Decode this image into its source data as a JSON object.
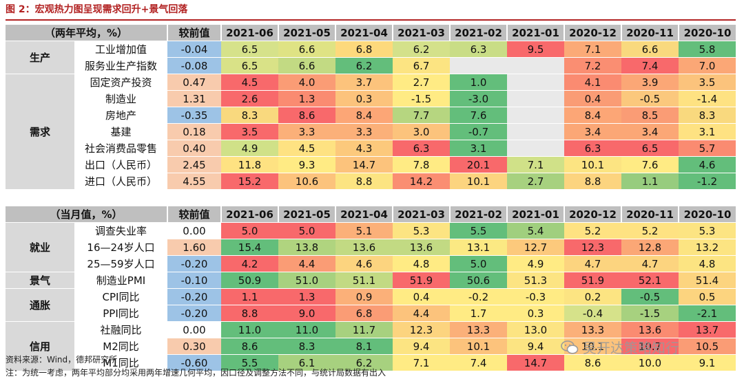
{
  "title": "图 2：宏观热力图呈现需求回升+景气回落",
  "section1": {
    "header_label": "（两年平均，%）",
    "change_label": "较前值",
    "months": [
      "2021-06",
      "2021-05",
      "2021-04",
      "2021-03",
      "2021-02",
      "2021-01",
      "2020-12",
      "2020-11",
      "2020-10"
    ],
    "groups": [
      {
        "name": "生产",
        "rows": [
          {
            "label": "工业增加值",
            "change": "-0.04",
            "values": [
              "6.5",
              "6.6",
              "6.8",
              "6.2",
              "6.3",
              "9.5",
              "7.1",
              "6.6",
              "5.8"
            ]
          },
          {
            "label": "服务业生产指数",
            "change": "-0.08",
            "values": [
              "6.5",
              "6.6",
              "6.2",
              "6.7",
              "",
              "",
              "7.2",
              "7.4",
              "7.0"
            ]
          }
        ]
      },
      {
        "name": "需求",
        "rows": [
          {
            "label": "固定资产投资",
            "change": "0.47",
            "values": [
              "4.5",
              "4.0",
              "3.7",
              "2.7",
              "1.0",
              "",
              "4.1",
              "3.9",
              "3.5"
            ]
          },
          {
            "label": "制造业",
            "change": "1.31",
            "values": [
              "2.6",
              "1.3",
              "0.3",
              "-1.5",
              "-3.0",
              "",
              "0.4",
              "-0.5",
              "-1.4"
            ]
          },
          {
            "label": "房地产",
            "change": "-0.35",
            "values": [
              "8.3",
              "8.6",
              "8.4",
              "7.7",
              "7.6",
              "",
              "8.4",
              "8.5",
              "8.3"
            ]
          },
          {
            "label": "基建",
            "change": "0.18",
            "values": [
              "3.5",
              "3.3",
              "3.3",
              "3.0",
              "-0.7",
              "",
              "3.4",
              "3.4",
              "3.1"
            ]
          },
          {
            "label": "社会消费品零售",
            "change": "0.40",
            "values": [
              "4.9",
              "4.5",
              "4.3",
              "6.3",
              "3.1",
              "",
              "6.3",
              "6.5",
              "5.7"
            ]
          },
          {
            "label": "出口（人民币）",
            "change": "2.45",
            "values": [
              "11.8",
              "9.3",
              "14.7",
              "7.8",
              "20.1",
              "7.1",
              "10.1",
              "7.6",
              "4.6"
            ]
          },
          {
            "label": "进口（人民币）",
            "change": "4.55",
            "values": [
              "15.2",
              "10.6",
              "8.8",
              "14.2",
              "10.1",
              "2.7",
              "8.8",
              "1.1",
              "-1.2"
            ]
          }
        ]
      }
    ]
  },
  "section2": {
    "header_label": "（当月值，%）",
    "change_label": "较前值",
    "months": [
      "2021-06",
      "2021-05",
      "2021-04",
      "2021-03",
      "2021-02",
      "2021-01",
      "2020-12",
      "2020-11",
      "2020-10"
    ],
    "groups": [
      {
        "name": "就业",
        "rows": [
          {
            "label": "调查失业率",
            "change": "0.00",
            "values": [
              "5.0",
              "5.0",
              "5.1",
              "5.3",
              "5.5",
              "5.4",
              "5.2",
              "5.2",
              "5.3"
            ]
          },
          {
            "label": "16—24岁人口",
            "change": "1.60",
            "values": [
              "15.4",
              "13.8",
              "13.6",
              "13.6",
              "13.1",
              "12.7",
              "12.3",
              "12.8",
              "13.2"
            ]
          },
          {
            "label": "25—59岁人口",
            "change": "-0.20",
            "values": [
              "4.2",
              "4.4",
              "4.6",
              "4.8",
              "5.0",
              "4.9",
              "4.7",
              "4.7",
              "4.8"
            ]
          }
        ]
      },
      {
        "name": "景气",
        "rows": [
          {
            "label": "制造业PMI",
            "change": "-0.10",
            "values": [
              "50.9",
              "51.0",
              "51.1",
              "51.9",
              "50.6",
              "51.3",
              "51.9",
              "52.1",
              "51.4"
            ]
          }
        ]
      },
      {
        "name": "通胀",
        "rows": [
          {
            "label": "CPI同比",
            "change": "-0.20",
            "values": [
              "1.1",
              "1.3",
              "0.9",
              "0.4",
              "-0.2",
              "-0.3",
              "0.2",
              "-0.5",
              "0.5"
            ]
          },
          {
            "label": "PPI同比",
            "change": "-0.20",
            "values": [
              "8.8",
              "9.0",
              "6.8",
              "4.4",
              "1.7",
              "0.3",
              "-0.4",
              "-1.5",
              "-2.1"
            ]
          }
        ]
      },
      {
        "name": "信用",
        "rows": [
          {
            "label": "社融同比",
            "change": "0.00",
            "values": [
              "11.0",
              "11.0",
              "11.7",
              "12.3",
              "13.3",
              "13.0",
              "13.3",
              "13.6",
              "13.7"
            ]
          },
          {
            "label": "M2同比",
            "change": "0.30",
            "values": [
              "8.6",
              "8.3",
              "8.1",
              "9.4",
              "10.1",
              "9.4",
              "10.1",
              "10.7",
              "10.5"
            ]
          },
          {
            "label": "M1同比",
            "change": "-0.60",
            "values": [
              "5.5",
              "6.1",
              "6.2",
              "7.1",
              "7.4",
              "14.7",
              "8.6",
              "10.0",
              "9.1"
            ]
          }
        ]
      }
    ]
  },
  "cell_colors": {
    "section1": [
      [
        "#d6e28a",
        "#dfe384",
        "#fdd97c",
        "#d4e18a",
        "#c9dd86",
        "#f8696b",
        "#fbaa77",
        "#f9d97e",
        "#63be7b"
      ],
      [
        "#d9e287",
        "#c2da83",
        "#63be7b",
        "#fce482",
        "",
        "",
        "#fa8e72",
        "#f8696b",
        "#fba776"
      ],
      [
        "#f8696b",
        "#fa9c75",
        "#fcc37c",
        "#ffeb84",
        "#63be7b",
        "",
        "#fa8b71",
        "#fba776",
        "#fbc37c"
      ],
      [
        "#f8696b",
        "#fa8b71",
        "#fcc37c",
        "#ffeb84",
        "#63be7b",
        "",
        "#fa9c75",
        "#fbc87d",
        "#fee282"
      ],
      [
        "#f9d97e",
        "#f8696b",
        "#fca676",
        "#b6d680",
        "#63be7b",
        "",
        "#fca676",
        "#fa9c75",
        "#f9d97e"
      ],
      [
        "#f8696b",
        "#fbb079",
        "#fbb079",
        "#fcc37c",
        "#63be7b",
        "",
        "#fba776",
        "#fba776",
        "#fee282"
      ],
      [
        "#d0e188",
        "#fee282",
        "#fcc97c",
        "#f8696b",
        "#63be7b",
        "",
        "#f8696b",
        "#f8696b",
        "#fa8b71"
      ],
      [
        "#fee282",
        "#ffeb84",
        "#fcc37c",
        "#ffeb84",
        "#f8696b",
        "#d0e188",
        "#fce482",
        "#ffeb84",
        "#63be7b"
      ],
      [
        "#f8696b",
        "#fcc37c",
        "#fce482",
        "#fa8e72",
        "#fcd47f",
        "#a7d17f",
        "#fcd47f",
        "#97cc7e",
        "#63be7b"
      ]
    ],
    "section2": [
      [
        "#f8696b",
        "#f8696b",
        "#fbb079",
        "#fce482",
        "#63be7b",
        "#a0cf7e",
        "#fee282",
        "#fee282",
        "#fce482"
      ],
      [
        "#63be7b",
        "#b0d47f",
        "#c2da83",
        "#c2da83",
        "#fbe983",
        "#fcc97c",
        "#f8696b",
        "#fba776",
        "#fce482"
      ],
      [
        "#f8696b",
        "#fa9c75",
        "#fcd47f",
        "#ffeb84",
        "#63be7b",
        "#ffeb84",
        "#fcd47f",
        "#fcd47f",
        "#fce482"
      ],
      [
        "#63be7b",
        "#a7d17f",
        "#c2da83",
        "#f8696b",
        "#63be7b",
        "#fce482",
        "#f8696b",
        "#f8696b",
        "#fcd47f"
      ],
      [
        "#f8696b",
        "#f8696b",
        "#fbb079",
        "#ffeb84",
        "#ffeb84",
        "#ffeb84",
        "#fce482",
        "#63be7b",
        "#fcd47f"
      ],
      [
        "#f8696b",
        "#f8696b",
        "#fa9c75",
        "#fcc37c",
        "#ffeb84",
        "#ffeb84",
        "#d6e28a",
        "#a7d17f",
        "#63be7b"
      ],
      [
        "#63be7b",
        "#63be7b",
        "#a7d17f",
        "#fcd47f",
        "#fbb079",
        "#fce482",
        "#fbb079",
        "#fa8b71",
        "#f8696b"
      ],
      [
        "#63be7b",
        "#63be7b",
        "#63be7b",
        "#fce482",
        "#fcc37c",
        "#fce482",
        "#fcc37c",
        "#f8696b",
        "#fa9c75"
      ],
      [
        "#63be7b",
        "#a7d17f",
        "#a7d17f",
        "#ffeb84",
        "#ffeb84",
        "#f8696b",
        "#ffeb84",
        "#ffeb84",
        "#ffeb84"
      ]
    ]
  },
  "footer": {
    "source": "资料来源：Wind，德邦研究所",
    "note": "注：为统一考虑，两年平均部分均采用两年增速几何平均，因口径及调整方法不同，与统计局数据有出入"
  },
  "watermark": "吴开达策略知行"
}
